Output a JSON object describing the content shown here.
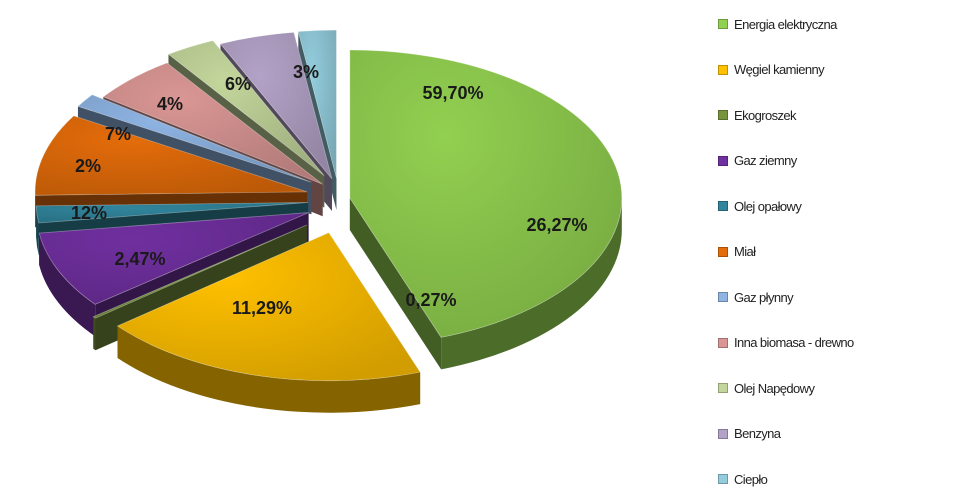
{
  "chart_data": {
    "type": "pie",
    "style": "3d-exploded",
    "legend_position": "right",
    "slices": [
      {
        "name": "Energia elektryczna",
        "value": 59.7,
        "label": "59,70%",
        "color": "#92d050"
      },
      {
        "name": "Węgiel kamienny",
        "value": 26.27,
        "label": "26,27%",
        "color": "#ffc000"
      },
      {
        "name": "Ekogroszek",
        "value": 0.27,
        "label": "0,27%",
        "color": "#77933c"
      },
      {
        "name": "Gaz ziemny",
        "value": 11.29,
        "label": "11,29%",
        "color": "#7030a0"
      },
      {
        "name": "Olej opałowy",
        "value": 2.47,
        "label": "2,47%",
        "color": "#31859c"
      },
      {
        "name": "Miał",
        "value": 12,
        "label": "12%",
        "color": "#e46c0a"
      },
      {
        "name": "Gaz płynny",
        "value": 2,
        "label": "2%",
        "color": "#8eb4e3"
      },
      {
        "name": "Inna biomasa - drewno",
        "value": 7,
        "label": "7%",
        "color": "#d99694"
      },
      {
        "name": "Olej Napędowy",
        "value": 4,
        "label": "4%",
        "color": "#c3d69b"
      },
      {
        "name": "Benzyna",
        "value": 6,
        "label": "6%",
        "color": "#b3a2c7"
      },
      {
        "name": "Ciepło",
        "value": 3,
        "label": "3%",
        "color": "#93cddd"
      }
    ]
  }
}
